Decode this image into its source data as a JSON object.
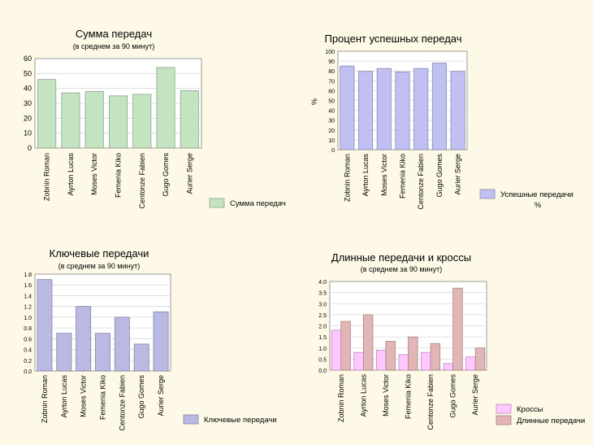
{
  "colors": {
    "background": "#fdf9e6",
    "green": "#c3e3c1",
    "green_stroke": "#8fb98d",
    "blue": "#c0c0f2",
    "blue_stroke": "#8585c8",
    "purple": "#b9b9e3",
    "purple_stroke": "#7f7fb8",
    "pink": "#ffc6ff",
    "pink_stroke": "#d98bd9",
    "rose": "#e2b6b6",
    "rose_stroke": "#a97e7e"
  },
  "chart_data": [
    {
      "id": "total",
      "type": "bar",
      "title": "Сумма передач",
      "subtitle": "(в среднем за 90 минут)",
      "ylabel": "",
      "categories": [
        "Zobnin Roman",
        "Ayrton Lucas",
        "Moses Victor",
        "Femenia Kiko",
        "Centonze Fabien",
        "Gugo Gomes",
        "Aurier Serge"
      ],
      "series": [
        {
          "name": "Сумма передач",
          "color": "#c3e3c1",
          "values": [
            46,
            37,
            38,
            35,
            36,
            54,
            38.5
          ]
        }
      ],
      "ylim": [
        0,
        60
      ],
      "yticks": [
        "0",
        "10",
        "20",
        "30",
        "40",
        "50",
        "60"
      ],
      "grid": true,
      "legend": "bottom-right"
    },
    {
      "id": "pct",
      "type": "bar",
      "title": "Процент успешных передач",
      "subtitle": "",
      "ylabel": "%",
      "categories": [
        "Zobnin Roman",
        "Ayrton Lucas",
        "Moses Victor",
        "Femenia Kiko",
        "Centonze Fabien",
        "Gugo Gomes",
        "Aurier Serge"
      ],
      "series": [
        {
          "name": "Успешные передачи",
          "color": "#c0c0f2",
          "values": [
            85,
            79.5,
            82.5,
            79,
            82.5,
            88,
            79.5
          ]
        }
      ],
      "ylim": [
        0,
        100
      ],
      "yticks": [
        "0",
        "10",
        "20",
        "30",
        "40",
        "50",
        "60",
        "70",
        "80",
        "90",
        "100"
      ],
      "legend_extra": "%",
      "grid": true,
      "legend": "bottom-right"
    },
    {
      "id": "key",
      "type": "bar",
      "title": "Ключевые передачи",
      "subtitle": "(в среднем за 90 минут)",
      "ylabel": "",
      "categories": [
        "Zobnin Roman",
        "Ayrton Lucas",
        "Moses Victor",
        "Femenia Kiko",
        "Centonze Fabien",
        "Gugo Gomes",
        "Aurier Serge"
      ],
      "series": [
        {
          "name": "Ключевые передачи",
          "color": "#b9b9e3",
          "values": [
            1.7,
            0.7,
            1.2,
            0.7,
            1.0,
            0.5,
            1.1
          ]
        }
      ],
      "ylim": [
        0,
        1.8
      ],
      "yticks": [
        "0.0",
        "0.2",
        "0.4",
        "0.6",
        "0.8",
        "1.0",
        "1.2",
        "1.4",
        "1.6",
        "1.8"
      ],
      "grid": true,
      "legend": "bottom-right"
    },
    {
      "id": "long",
      "type": "bar",
      "title": "Длинные передачи и кроссы",
      "subtitle": "(в среднем за 90 минут)",
      "ylabel": "",
      "categories": [
        "Zobnin Roman",
        "Ayrton Lucas",
        "Moses Victor",
        "Femenia Kiko",
        "Centonze Fabien",
        "Gugo Gomes",
        "Aurier Serge"
      ],
      "series": [
        {
          "name": "Кроссы",
          "color": "#ffc6ff",
          "values": [
            1.8,
            0.8,
            0.9,
            0.7,
            0.8,
            0.3,
            0.6
          ]
        },
        {
          "name": "Длинные передачи",
          "color": "#e2b6b6",
          "values": [
            2.2,
            2.5,
            1.3,
            1.5,
            1.2,
            3.7,
            1.0
          ]
        }
      ],
      "ylim": [
        0,
        4.0
      ],
      "yticks": [
        "0.0",
        "0.5",
        "1.0",
        "1.5",
        "2.0",
        "2.5",
        "3.0",
        "3.5",
        "4.0"
      ],
      "grid": true,
      "legend": "bottom-right"
    }
  ]
}
